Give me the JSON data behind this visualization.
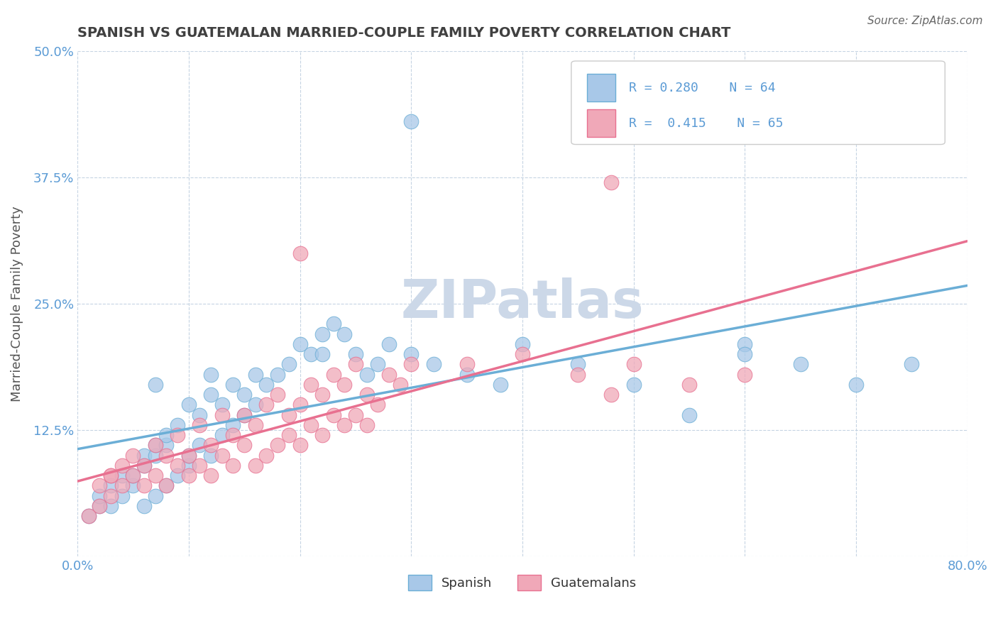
{
  "title": "SPANISH VS GUATEMALAN MARRIED-COUPLE FAMILY POVERTY CORRELATION CHART",
  "source": "Source: ZipAtlas.com",
  "ylabel": "Married-Couple Family Poverty",
  "xlim": [
    0.0,
    80.0
  ],
  "ylim": [
    0.0,
    50.0
  ],
  "R_spanish": 0.28,
  "N_spanish": 64,
  "R_guatemalan": 0.415,
  "N_guatemalan": 65,
  "color_spanish": "#a8c8e8",
  "color_guatemalan": "#f0a8b8",
  "color_line_spanish": "#6baed6",
  "color_line_guatemalan": "#e87090",
  "watermark": "ZIPatlas",
  "watermark_color": "#ccd8e8",
  "title_color": "#404040",
  "tick_color": "#5b9bd5",
  "figsize": [
    14.06,
    8.92
  ],
  "dpi": 100,
  "sp_x": [
    1,
    2,
    2,
    3,
    3,
    4,
    4,
    5,
    5,
    6,
    6,
    6,
    7,
    7,
    7,
    8,
    8,
    8,
    9,
    9,
    10,
    10,
    10,
    11,
    11,
    12,
    12,
    13,
    13,
    14,
    14,
    15,
    15,
    16,
    16,
    17,
    18,
    19,
    20,
    21,
    22,
    23,
    24,
    25,
    26,
    27,
    28,
    30,
    32,
    35,
    38,
    40,
    45,
    50,
    55,
    60,
    65,
    70,
    75,
    30,
    60,
    22,
    12,
    7
  ],
  "sp_y": [
    4,
    5,
    6,
    5,
    7,
    6,
    8,
    7,
    8,
    5,
    9,
    10,
    6,
    10,
    11,
    7,
    11,
    12,
    8,
    13,
    9,
    10,
    15,
    11,
    14,
    10,
    16,
    12,
    15,
    13,
    17,
    14,
    16,
    15,
    18,
    17,
    18,
    19,
    21,
    20,
    22,
    23,
    22,
    20,
    18,
    19,
    21,
    20,
    19,
    18,
    17,
    21,
    19,
    17,
    14,
    21,
    19,
    17,
    19,
    43,
    20,
    20,
    18,
    17
  ],
  "gt_x": [
    1,
    2,
    2,
    3,
    3,
    4,
    4,
    5,
    5,
    6,
    6,
    7,
    7,
    8,
    8,
    9,
    9,
    10,
    10,
    11,
    11,
    12,
    12,
    13,
    13,
    14,
    14,
    15,
    15,
    16,
    16,
    17,
    17,
    18,
    18,
    19,
    19,
    20,
    20,
    21,
    21,
    22,
    22,
    23,
    23,
    24,
    24,
    25,
    25,
    26,
    26,
    27,
    28,
    29,
    30,
    35,
    40,
    45,
    48,
    50,
    55,
    60,
    20,
    48,
    3
  ],
  "gt_y": [
    4,
    5,
    7,
    6,
    8,
    7,
    9,
    8,
    10,
    7,
    9,
    8,
    11,
    7,
    10,
    9,
    12,
    8,
    10,
    9,
    13,
    8,
    11,
    10,
    14,
    9,
    12,
    11,
    14,
    9,
    13,
    10,
    15,
    11,
    16,
    12,
    14,
    11,
    15,
    13,
    17,
    12,
    16,
    14,
    18,
    13,
    17,
    14,
    19,
    13,
    16,
    15,
    18,
    17,
    19,
    19,
    20,
    18,
    16,
    19,
    17,
    18,
    30,
    37,
    8
  ]
}
